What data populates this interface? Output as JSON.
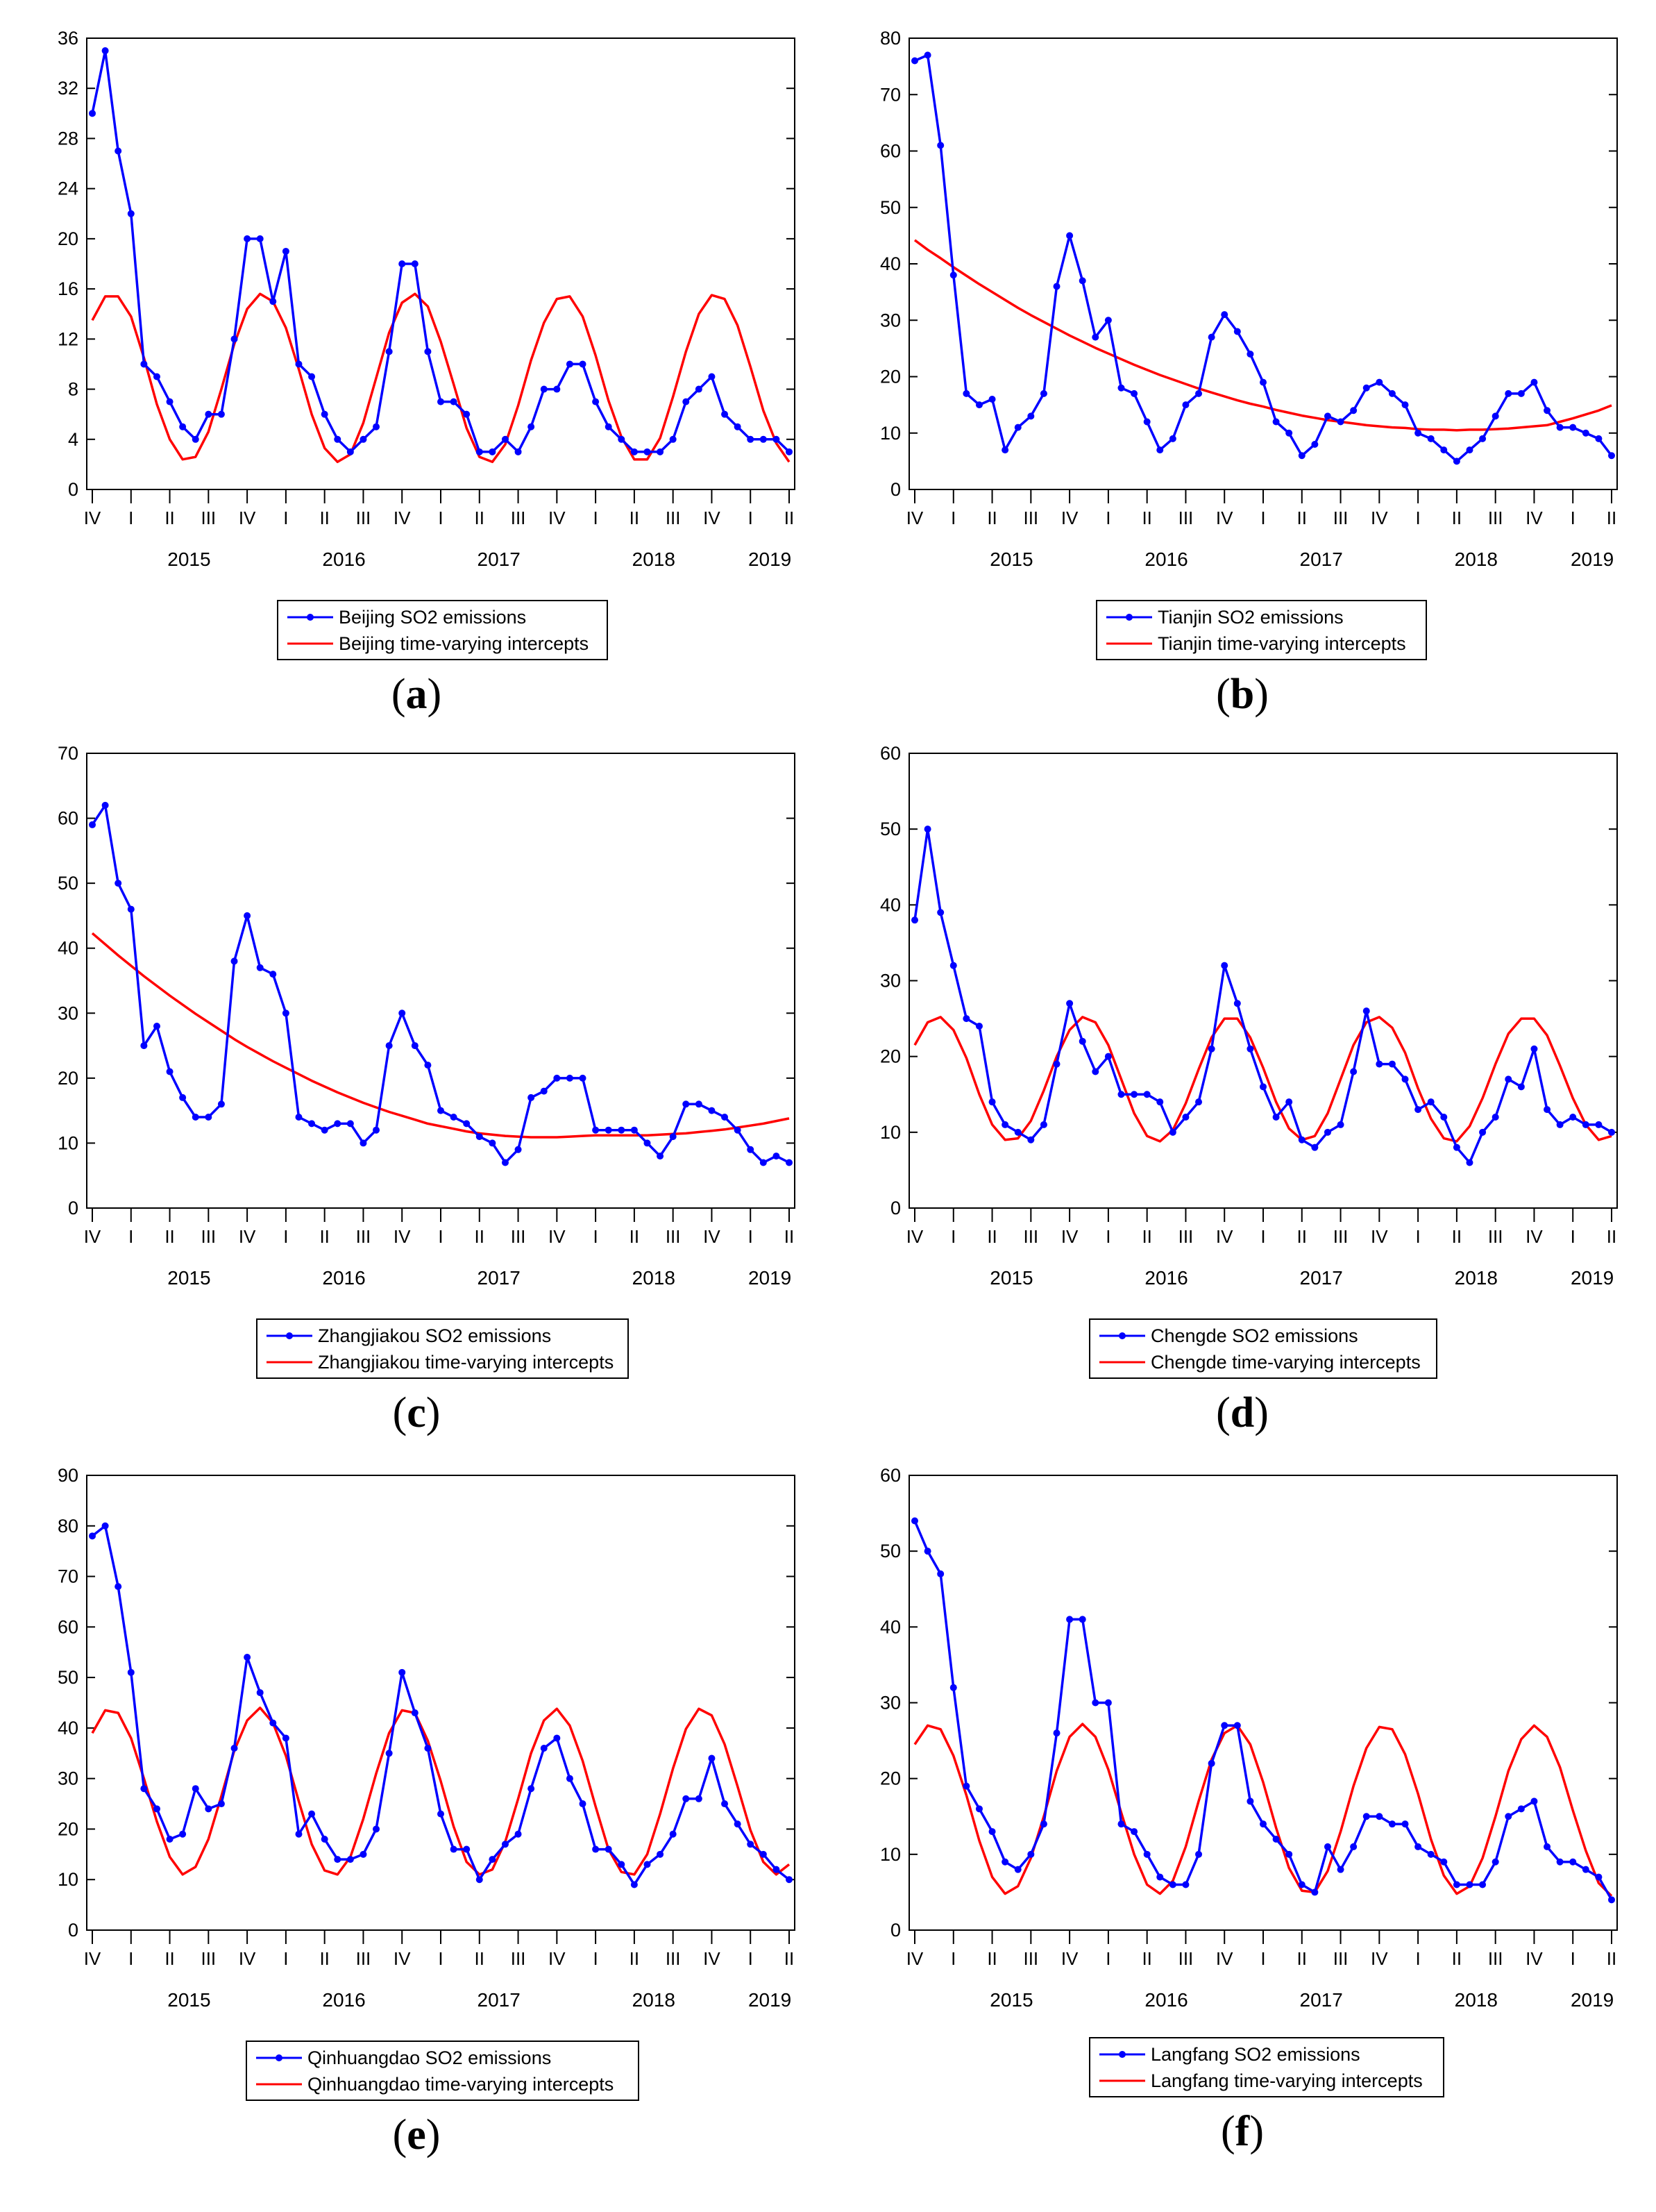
{
  "figure": {
    "x_tick_labels": [
      "IV",
      "I",
      "II",
      "III",
      "IV",
      "I",
      "II",
      "III",
      "IV",
      "I",
      "II",
      "III",
      "IV",
      "I",
      "II",
      "III",
      "IV",
      "I",
      "II"
    ],
    "x_tick_quarter_index": [
      0,
      1,
      2,
      3,
      4,
      5,
      6,
      7,
      8,
      9,
      10,
      11,
      12,
      13,
      14,
      15,
      16,
      17,
      18
    ],
    "year_labels": [
      "2015",
      "2016",
      "2017",
      "2018",
      "2019"
    ],
    "year_center_quarter": [
      2.5,
      6.5,
      10.5,
      14.5,
      17.5
    ],
    "months_per_quarter": 3,
    "series_colors": {
      "emissions": "#0000ff",
      "intercepts": "#ff0000"
    }
  },
  "chart_data": [
    {
      "type": "line",
      "panel_label": "a",
      "ylim": [
        0,
        36
      ],
      "yticks": [
        0,
        4,
        8,
        12,
        16,
        20,
        24,
        28,
        32,
        36
      ],
      "series": [
        {
          "name": "Beijing SO2 emissions",
          "color": "#0000ff",
          "markers": true,
          "values": [
            30,
            35,
            27,
            22,
            10,
            9,
            7,
            5,
            4,
            6,
            6,
            12,
            20,
            20,
            15,
            19,
            10,
            9,
            6,
            4,
            3,
            4,
            5,
            11,
            18,
            18,
            11,
            7,
            7,
            6,
            3,
            3,
            4,
            3,
            5,
            8,
            8,
            10,
            10,
            7,
            5,
            4,
            3,
            3,
            3,
            4,
            7,
            8,
            9,
            6,
            5,
            4,
            4,
            4,
            3
          ]
        },
        {
          "name": "Beijing time-varying intercepts",
          "color": "#ff0000",
          "markers": false,
          "values": [
            13.5,
            15.4,
            15.4,
            13.8,
            10.5,
            6.8,
            4.0,
            2.4,
            2.6,
            4.6,
            8.0,
            11.6,
            14.4,
            15.6,
            15.0,
            12.9,
            9.6,
            6.0,
            3.3,
            2.2,
            2.8,
            5.3,
            8.9,
            12.5,
            14.9,
            15.6,
            14.6,
            11.8,
            8.4,
            4.9,
            2.6,
            2.2,
            3.6,
            6.7,
            10.3,
            13.3,
            15.2,
            15.4,
            13.8,
            10.7,
            7.1,
            4.2,
            2.4,
            2.4,
            4.1,
            7.4,
            11.0,
            14.0,
            15.5,
            15.2,
            13.1,
            9.8,
            6.3,
            3.7,
            2.2
          ]
        }
      ]
    },
    {
      "type": "line",
      "panel_label": "b",
      "ylim": [
        0,
        80
      ],
      "yticks": [
        0,
        10,
        20,
        30,
        40,
        50,
        60,
        70,
        80
      ],
      "series": [
        {
          "name": "Tianjin SO2 emissions",
          "color": "#0000ff",
          "markers": true,
          "values": [
            76,
            77,
            61,
            38,
            17,
            15,
            16,
            7,
            11,
            13,
            17,
            36,
            45,
            37,
            27,
            30,
            18,
            17,
            12,
            7,
            9,
            15,
            17,
            27,
            31,
            28,
            24,
            19,
            12,
            10,
            6,
            8,
            13,
            12,
            14,
            18,
            19,
            17,
            15,
            10,
            9,
            7,
            5,
            7,
            9,
            13,
            17,
            17,
            19,
            14,
            11,
            11,
            10,
            9,
            6
          ]
        },
        {
          "name": "Tianjin time-varying intercepts",
          "color": "#ff0000",
          "markers": false,
          "values": [
            44.2,
            42.5,
            41.0,
            39.4,
            37.9,
            36.4,
            35.0,
            33.6,
            32.2,
            30.9,
            29.7,
            28.5,
            27.3,
            26.2,
            25.1,
            24.1,
            23.1,
            22.1,
            21.2,
            20.3,
            19.5,
            18.7,
            17.9,
            17.2,
            16.5,
            15.8,
            15.2,
            14.7,
            14.1,
            13.6,
            13.1,
            12.7,
            12.3,
            12.0,
            11.7,
            11.4,
            11.2,
            11.0,
            10.9,
            10.7,
            10.6,
            10.6,
            10.5,
            10.6,
            10.6,
            10.7,
            10.8,
            11.0,
            11.2,
            11.4,
            12.0,
            12.6,
            13.3,
            14.0,
            14.9
          ]
        }
      ]
    },
    {
      "type": "line",
      "panel_label": "c",
      "ylim": [
        0,
        70
      ],
      "yticks": [
        0,
        10,
        20,
        30,
        40,
        50,
        60,
        70
      ],
      "series": [
        {
          "name": "Zhangjiakou SO2 emissions",
          "color": "#0000ff",
          "markers": true,
          "values": [
            59,
            62,
            50,
            46,
            25,
            28,
            21,
            17,
            14,
            14,
            16,
            38,
            45,
            37,
            36,
            30,
            14,
            13,
            12,
            13,
            13,
            10,
            12,
            25,
            30,
            25,
            22,
            15,
            14,
            13,
            11,
            10,
            7,
            9,
            17,
            18,
            20,
            20,
            20,
            12,
            12,
            12,
            12,
            10,
            8,
            11,
            16,
            16,
            15,
            14,
            12,
            9,
            7,
            8,
            7
          ]
        },
        {
          "name": "Zhangjiakou time-varying intercepts",
          "color": "#ff0000",
          "markers": false,
          "values": [
            42.3,
            40.6,
            38.9,
            37.3,
            35.7,
            34.2,
            32.7,
            31.3,
            29.9,
            28.6,
            27.3,
            26.0,
            24.8,
            23.7,
            22.6,
            21.6,
            20.6,
            19.6,
            18.7,
            17.8,
            17.0,
            16.2,
            15.5,
            14.8,
            14.2,
            13.6,
            13.0,
            12.6,
            12.2,
            11.8,
            11.5,
            11.3,
            11.1,
            11.0,
            10.9,
            10.9,
            10.9,
            11.0,
            11.1,
            11.2,
            11.2,
            11.2,
            11.2,
            11.2,
            11.3,
            11.4,
            11.5,
            11.7,
            11.9,
            12.1,
            12.4,
            12.7,
            13.0,
            13.4,
            13.8
          ]
        }
      ]
    },
    {
      "type": "line",
      "panel_label": "d",
      "ylim": [
        0,
        60
      ],
      "yticks": [
        0,
        10,
        20,
        30,
        40,
        50,
        60
      ],
      "series": [
        {
          "name": "Chengde SO2 emissions",
          "color": "#0000ff",
          "markers": true,
          "values": [
            38,
            50,
            39,
            32,
            25,
            24,
            14,
            11,
            10,
            9,
            11,
            19,
            27,
            22,
            18,
            20,
            15,
            15,
            15,
            14,
            10,
            12,
            14,
            21,
            32,
            27,
            21,
            16,
            12,
            14,
            9,
            8,
            10,
            11,
            18,
            26,
            19,
            19,
            17,
            13,
            14,
            12,
            8,
            6,
            10,
            12,
            17,
            16,
            21,
            13,
            11,
            12,
            11,
            11,
            10
          ]
        },
        {
          "name": "Chengde time-varying intercepts",
          "color": "#ff0000",
          "markers": false,
          "values": [
            21.5,
            24.5,
            25.2,
            23.5,
            19.8,
            15.0,
            11.0,
            9.0,
            9.2,
            11.5,
            15.5,
            20.0,
            23.5,
            25.2,
            24.5,
            21.5,
            17.0,
            12.5,
            9.5,
            8.8,
            10.3,
            13.8,
            18.3,
            22.5,
            25.0,
            25.0,
            22.5,
            18.5,
            14.0,
            10.5,
            9.0,
            9.5,
            12.5,
            17.0,
            21.5,
            24.5,
            25.2,
            23.8,
            20.5,
            15.8,
            11.8,
            9.2,
            8.8,
            10.8,
            14.5,
            19.0,
            23.0,
            25.0,
            25.0,
            22.8,
            18.8,
            14.5,
            11.0,
            9.0,
            9.5
          ]
        }
      ]
    },
    {
      "type": "line",
      "panel_label": "e",
      "ylim": [
        0,
        90
      ],
      "yticks": [
        0,
        10,
        20,
        30,
        40,
        50,
        60,
        70,
        80,
        90
      ],
      "series": [
        {
          "name": "Qinhuangdao SO2 emissions",
          "color": "#0000ff",
          "markers": true,
          "values": [
            78,
            80,
            68,
            51,
            28,
            24,
            18,
            19,
            28,
            24,
            25,
            36,
            54,
            47,
            41,
            38,
            19,
            23,
            18,
            14,
            14,
            15,
            20,
            35,
            51,
            43,
            36,
            23,
            16,
            16,
            10,
            14,
            17,
            19,
            28,
            36,
            38,
            30,
            25,
            16,
            16,
            13,
            9,
            13,
            15,
            19,
            26,
            26,
            34,
            25,
            21,
            17,
            15,
            12,
            10
          ]
        },
        {
          "name": "Qinhuangdao time-varying intercepts",
          "color": "#ff0000",
          "markers": false,
          "values": [
            39.0,
            43.5,
            43.0,
            38.0,
            30.0,
            21.5,
            14.5,
            11.0,
            12.5,
            18.0,
            26.5,
            35.5,
            41.5,
            44.0,
            41.0,
            34.5,
            25.5,
            17.0,
            11.8,
            11.0,
            14.5,
            22.0,
            31.0,
            39.0,
            43.5,
            43.0,
            37.5,
            29.5,
            20.5,
            13.5,
            11.0,
            12.0,
            17.5,
            26.0,
            35.0,
            41.5,
            43.8,
            40.5,
            33.5,
            24.5,
            16.0,
            11.5,
            11.0,
            15.0,
            23.0,
            32.0,
            39.8,
            43.8,
            42.5,
            36.8,
            28.5,
            19.8,
            13.5,
            11.0,
            13.0
          ]
        }
      ]
    },
    {
      "type": "line",
      "panel_label": "f",
      "ylim": [
        0,
        60
      ],
      "yticks": [
        0,
        10,
        20,
        30,
        40,
        50,
        60
      ],
      "series": [
        {
          "name": "Langfang SO2 emissions",
          "color": "#0000ff",
          "markers": true,
          "values": [
            54,
            50,
            47,
            32,
            19,
            16,
            13,
            9,
            8,
            10,
            14,
            26,
            41,
            41,
            30,
            30,
            14,
            13,
            10,
            7,
            6,
            6,
            10,
            22,
            27,
            27,
            17,
            14,
            12,
            10,
            6,
            5,
            11,
            8,
            11,
            15,
            15,
            14,
            14,
            11,
            10,
            9,
            6,
            6,
            6,
            9,
            15,
            16,
            17,
            11,
            9,
            9,
            8,
            7,
            4
          ]
        },
        {
          "name": "Langfang time-varying intercepts",
          "color": "#ff0000",
          "markers": false,
          "values": [
            24.5,
            27.0,
            26.5,
            23.0,
            17.8,
            11.8,
            7.0,
            4.8,
            5.8,
            9.5,
            15.0,
            21.0,
            25.5,
            27.2,
            25.5,
            21.2,
            15.5,
            10.0,
            6.0,
            4.8,
            6.5,
            11.0,
            17.0,
            22.5,
            26.0,
            27.0,
            24.5,
            19.5,
            13.5,
            8.2,
            5.2,
            5.0,
            7.8,
            13.0,
            19.0,
            24.0,
            26.8,
            26.5,
            23.2,
            18.0,
            12.0,
            7.2,
            4.8,
            5.8,
            9.5,
            15.0,
            21.0,
            25.2,
            27.0,
            25.5,
            21.5,
            15.8,
            10.5,
            6.2,
            4.5
          ]
        }
      ]
    }
  ]
}
